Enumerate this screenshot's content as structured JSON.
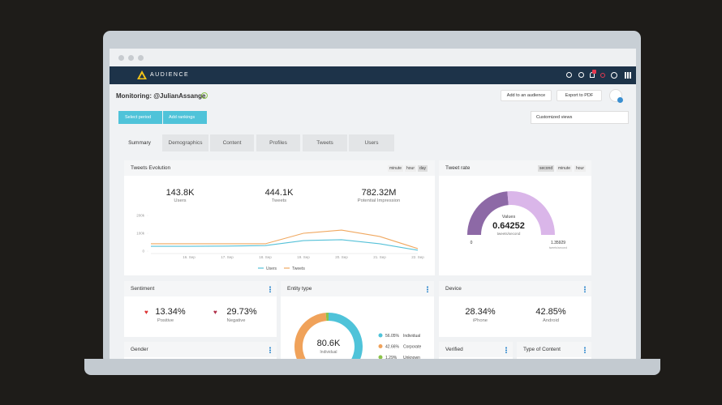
{
  "header": {
    "brand": "AUDIENCE",
    "title": "Monitoring: @JulianAssange",
    "actions": [
      "Add to an audience",
      "Export to PDF"
    ]
  },
  "toolbar": {
    "buttons": [
      "Select period",
      "Add rankings"
    ],
    "views": "Customized views"
  },
  "tabs": [
    "Summary",
    "Demographics",
    "Content",
    "Profiles",
    "Tweets",
    "Users"
  ],
  "tweets_evolution": {
    "title": "Tweets Evolution",
    "periods": [
      "minute",
      "hour",
      "day"
    ],
    "stats": [
      {
        "value": "143.8K",
        "label": "Users"
      },
      {
        "value": "444.1K",
        "label": "Tweets"
      },
      {
        "value": "782.32M",
        "label": "Potential Impression"
      }
    ],
    "chart": {
      "type": "line",
      "categories": [
        null,
        "16. Sep",
        "17. Sep",
        "18. Sep",
        "19. Sep",
        "20. Sep",
        "21. Sep",
        "22. Sep"
      ],
      "series": [
        {
          "name": "Users",
          "color": "#55c1d8",
          "values": [
            27000,
            27000,
            28000,
            31000,
            59000,
            64000,
            41000,
            5000
          ]
        },
        {
          "name": "Tweets",
          "color": "#f0a860",
          "values": [
            41000,
            41000,
            41000,
            41000,
            100000,
            118000,
            82000,
            14000
          ]
        }
      ],
      "ylim": [
        0,
        200000
      ],
      "yticks": [
        0,
        {
          "value": 100000,
          "label": "100k"
        },
        {
          "value": 200000,
          "label": "200k"
        }
      ]
    }
  },
  "tweet_rate": {
    "title": "Tweet rate",
    "periods": [
      "second",
      "minute",
      "hour"
    ],
    "gauge": {
      "type": "gauge",
      "label": "Values",
      "value": 0.64252,
      "unit": "tweets/second",
      "min": 0,
      "max": 1.35929,
      "colors": [
        "#8d69a6",
        "#dab6e9"
      ]
    }
  },
  "sentiment": {
    "title": "Sentiment",
    "items": [
      {
        "value": "13.34%",
        "label": "Positive"
      },
      {
        "value": "29.73%",
        "label": "Negative"
      }
    ]
  },
  "entity_type": {
    "title": "Entity type",
    "total": "80.6K",
    "total_label": "Individual",
    "chart": {
      "type": "donut",
      "categories": [
        "Individual",
        "Corporate",
        "Unknown"
      ],
      "values": [
        56.05,
        42.66,
        1.29
      ],
      "value_labels": [
        "56.05%",
        "42.66%",
        "1.29%"
      ],
      "colors": [
        "#4fc3d9",
        "#f0a25a",
        "#8bc34a"
      ]
    }
  },
  "device": {
    "title": "Device",
    "items": [
      {
        "value": "28.34%",
        "label": "iPhone"
      },
      {
        "value": "42.85%",
        "label": "Android"
      }
    ]
  },
  "gender": {
    "title": "Gender"
  },
  "verified": {
    "title": "Verified"
  },
  "content_type": {
    "title": "Type of Content"
  }
}
